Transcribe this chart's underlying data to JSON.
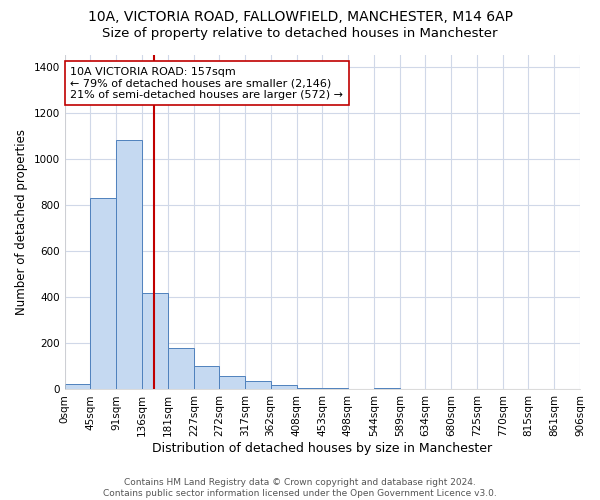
{
  "title_line1": "10A, VICTORIA ROAD, FALLOWFIELD, MANCHESTER, M14 6AP",
  "title_line2": "Size of property relative to detached houses in Manchester",
  "xlabel": "Distribution of detached houses by size in Manchester",
  "ylabel": "Number of detached properties",
  "bar_edges": [
    0,
    45,
    91,
    136,
    181,
    227,
    272,
    317,
    362,
    408,
    453,
    498,
    544,
    589,
    634,
    680,
    725,
    770,
    815,
    861,
    906
  ],
  "bar_heights": [
    25,
    830,
    1080,
    420,
    180,
    100,
    60,
    35,
    20,
    8,
    5,
    3,
    5,
    0,
    0,
    0,
    0,
    0,
    0,
    0
  ],
  "xtick_labels": [
    "0sqm",
    "45sqm",
    "91sqm",
    "136sqm",
    "181sqm",
    "227sqm",
    "272sqm",
    "317sqm",
    "362sqm",
    "408sqm",
    "453sqm",
    "498sqm",
    "544sqm",
    "589sqm",
    "634sqm",
    "680sqm",
    "725sqm",
    "770sqm",
    "815sqm",
    "861sqm",
    "906sqm"
  ],
  "bar_color": "#c5d9f1",
  "bar_edge_color": "#4f81bd",
  "vline_x": 157,
  "vline_color": "#c00000",
  "annotation_text": "10A VICTORIA ROAD: 157sqm\n← 79% of detached houses are smaller (2,146)\n21% of semi-detached houses are larger (572) →",
  "annotation_box_color": "#ffffff",
  "annotation_box_edge_color": "#c00000",
  "ylim": [
    0,
    1450
  ],
  "yticks": [
    0,
    200,
    400,
    600,
    800,
    1000,
    1200,
    1400
  ],
  "background_color": "#ffffff",
  "plot_bg_color": "#ffffff",
  "grid_color": "#d0d8e8",
  "footnote": "Contains HM Land Registry data © Crown copyright and database right 2024.\nContains public sector information licensed under the Open Government Licence v3.0.",
  "title_fontsize": 10,
  "subtitle_fontsize": 9.5,
  "xlabel_fontsize": 9,
  "ylabel_fontsize": 8.5,
  "tick_fontsize": 7.5,
  "annotation_fontsize": 8,
  "footnote_fontsize": 6.5
}
